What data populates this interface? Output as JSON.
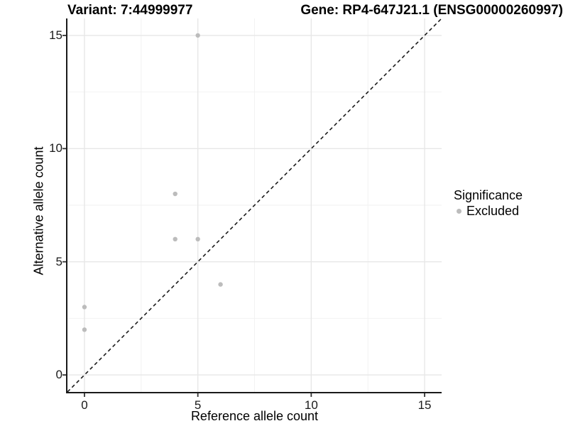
{
  "titles": {
    "left": "Variant: 7:44999977",
    "right": "Gene: RP4-647J21.1 (ENSG00000260997)"
  },
  "chart_data": {
    "type": "scatter",
    "title_left": "Variant: 7:44999977",
    "title_right": "Gene: RP4-647J21.1 (ENSG00000260997)",
    "xlabel": "Reference allele count",
    "ylabel": "Alternative allele count",
    "x_range": [
      -0.75,
      15.75
    ],
    "y_range": [
      -0.75,
      15.75
    ],
    "x_ticks": [
      0,
      5,
      10,
      15
    ],
    "y_ticks": [
      0,
      5,
      10,
      15
    ],
    "x_minor_ticks": [
      2.5,
      7.5,
      12.5
    ],
    "y_minor_ticks": [
      2.5,
      7.5,
      12.5
    ],
    "grid": true,
    "identity_line": {
      "style": "dashed",
      "equation": "y = x",
      "color": "#1a1a1a"
    },
    "series": [
      {
        "name": "Excluded",
        "color": "#bcbcbc",
        "points": [
          [
            0,
            2
          ],
          [
            0,
            3
          ],
          [
            4,
            6
          ],
          [
            4,
            8
          ],
          [
            5,
            6
          ],
          [
            5,
            15
          ],
          [
            6,
            4
          ]
        ]
      }
    ],
    "legend": {
      "title": "Significance",
      "position": "right",
      "entries": [
        {
          "label": "Excluded",
          "color": "#bcbcbc"
        }
      ]
    },
    "colors": {
      "grid_major": "#e7e7e7",
      "grid_minor": "#f2f2f2",
      "axis": "#1a1a1a",
      "tick": "#333333",
      "background": "#ffffff"
    }
  }
}
